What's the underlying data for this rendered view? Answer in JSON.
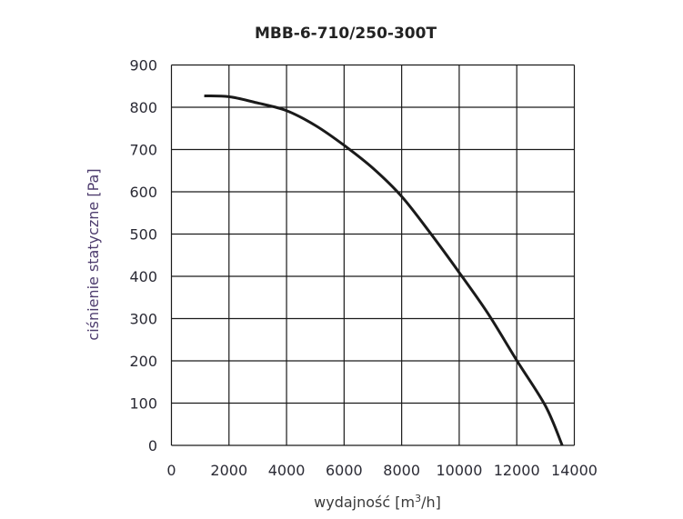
{
  "chart_data": {
    "type": "line",
    "title": "MBB-6-710/250-300T",
    "xlabel": "wydajność [m³/h]",
    "xlabel_parts": {
      "main": "wydajność [m",
      "sup": "3",
      "end": "/h]"
    },
    "ylabel": "ciśnienie statyczne [Pa]",
    "xlim": [
      0,
      14000
    ],
    "ylim": [
      0,
      900
    ],
    "xticks": [
      0,
      2000,
      4000,
      6000,
      8000,
      10000,
      12000,
      14000
    ],
    "yticks": [
      0,
      100,
      200,
      300,
      400,
      500,
      600,
      700,
      800,
      900
    ],
    "grid": true,
    "colors": {
      "line": "#1a1a1a",
      "grid": "#1a1a1a"
    },
    "series": [
      {
        "name": "MBB-6-710/250-300T",
        "x": [
          1140,
          2000,
          3000,
          4000,
          5000,
          6000,
          7000,
          8000,
          9000,
          10000,
          11000,
          12000,
          13000,
          13580
        ],
        "y": [
          827,
          825,
          810,
          792,
          757,
          710,
          656,
          589,
          502,
          409,
          312,
          201,
          93,
          0
        ]
      }
    ]
  }
}
